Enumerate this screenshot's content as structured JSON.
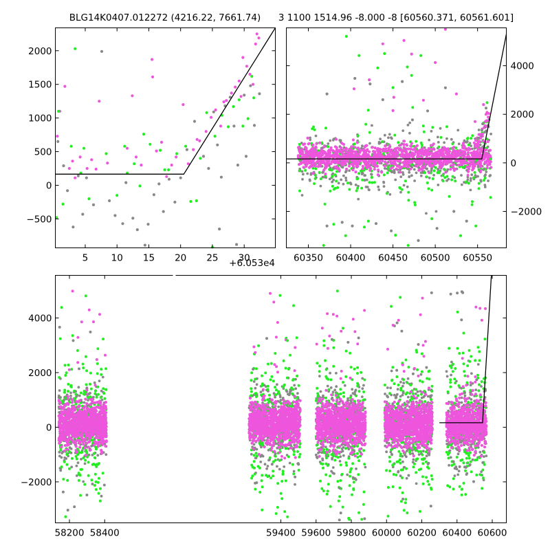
{
  "chart_data": [
    {
      "type": "scatter",
      "title": "BLG14K0407.012272 (4216.22, 7661.74)",
      "xlim": [
        0.3,
        34.9
      ],
      "ylim": [
        -930,
        2340
      ],
      "xticks": [
        5,
        10,
        15,
        20,
        25,
        30
      ],
      "xtick_labels": [
        "5",
        "10",
        "15",
        "20",
        "25",
        "30"
      ],
      "yticks": [
        -500,
        0,
        500,
        1000,
        1500,
        2000
      ],
      "ytick_labels": [
        "−500",
        "0",
        "500",
        "1000",
        "1500",
        "2000"
      ],
      "x_offset_label": "+6.053e4",
      "y_axis_side": "left",
      "model_line": {
        "x": [
          0.3,
          20.5,
          34.9
        ],
        "y": [
          165,
          165,
          2340
        ]
      },
      "series": [
        {
          "name": "magenta",
          "color": "#ee55dd",
          "points": [
            [
              0.6,
              730
            ],
            [
              1.0,
              1100
            ],
            [
              1.8,
              1470
            ],
            [
              2.5,
              250
            ],
            [
              3.0,
              360
            ],
            [
              3.4,
              110
            ],
            [
              4.2,
              420
            ],
            [
              5.3,
              250
            ],
            [
              6.0,
              380
            ],
            [
              6.7,
              240
            ],
            [
              7.2,
              1250
            ],
            [
              8.5,
              330
            ],
            [
              11.6,
              550
            ],
            [
              12.4,
              1330
            ],
            [
              13.0,
              420
            ],
            [
              13.8,
              300
            ],
            [
              15.5,
              1870
            ],
            [
              15.6,
              1610
            ],
            [
              16.2,
              510
            ],
            [
              17.0,
              640
            ],
            [
              17.8,
              130
            ],
            [
              18.6,
              300
            ],
            [
              19.3,
              420
            ],
            [
              20.4,
              1200
            ],
            [
              21.2,
              320
            ],
            [
              22.0,
              530
            ],
            [
              23.0,
              660
            ],
            [
              24.0,
              800
            ],
            [
              24.8,
              1010
            ],
            [
              25.5,
              1120
            ],
            [
              26.3,
              880
            ],
            [
              27.2,
              1260
            ],
            [
              28.0,
              1370
            ],
            [
              28.6,
              1460
            ],
            [
              29.2,
              1550
            ],
            [
              29.8,
              1900
            ],
            [
              30.4,
              1770
            ],
            [
              30.9,
              1650
            ],
            [
              31.4,
              1500
            ],
            [
              31.8,
              2100
            ],
            [
              32.0,
              2250
            ],
            [
              32.3,
              2190
            ],
            [
              22.6,
              680
            ],
            [
              26.8,
              1240
            ],
            [
              29.5,
              1320
            ]
          ]
        },
        {
          "name": "green",
          "color": "#22ee22",
          "points": [
            [
              0.5,
              -480
            ],
            [
              0.8,
              1100
            ],
            [
              1.5,
              -280
            ],
            [
              2.8,
              580
            ],
            [
              3.4,
              2030
            ],
            [
              4.3,
              180
            ],
            [
              4.8,
              550
            ],
            [
              5.6,
              -200
            ],
            [
              8.3,
              470
            ],
            [
              10.0,
              -150
            ],
            [
              11.2,
              580
            ],
            [
              11.6,
              180
            ],
            [
              12.7,
              320
            ],
            [
              13.6,
              -10
            ],
            [
              14.2,
              760
            ],
            [
              15.2,
              610
            ],
            [
              16.8,
              520
            ],
            [
              17.5,
              230
            ],
            [
              18.1,
              230
            ],
            [
              19.4,
              470
            ],
            [
              20.8,
              580
            ],
            [
              21.6,
              -240
            ],
            [
              22.5,
              -230
            ],
            [
              23.1,
              400
            ],
            [
              24.1,
              1080
            ],
            [
              25.0,
              -920
            ],
            [
              25.4,
              730
            ],
            [
              26.5,
              1040
            ],
            [
              27.5,
              870
            ],
            [
              28.3,
              1170
            ],
            [
              29.2,
              1270
            ],
            [
              29.8,
              880
            ],
            [
              30.6,
              990
            ],
            [
              31.2,
              1620
            ],
            [
              31.5,
              1300
            ]
          ]
        },
        {
          "name": "gray",
          "color": "#888888",
          "points": [
            [
              0.7,
              650
            ],
            [
              1.6,
              290
            ],
            [
              2.2,
              -80
            ],
            [
              3.1,
              -620
            ],
            [
              3.9,
              140
            ],
            [
              4.6,
              -430
            ],
            [
              5.2,
              110
            ],
            [
              6.3,
              -290
            ],
            [
              7.6,
              1990
            ],
            [
              8.8,
              -230
            ],
            [
              9.7,
              -450
            ],
            [
              10.9,
              -570
            ],
            [
              11.4,
              40
            ],
            [
              12.5,
              -490
            ],
            [
              13.2,
              -660
            ],
            [
              14.4,
              -890
            ],
            [
              14.9,
              -580
            ],
            [
              15.8,
              -140
            ],
            [
              16.6,
              20
            ],
            [
              17.3,
              -390
            ],
            [
              18.2,
              90
            ],
            [
              19.1,
              -250
            ],
            [
              20.0,
              110
            ],
            [
              21.0,
              530
            ],
            [
              22.2,
              950
            ],
            [
              23.6,
              430
            ],
            [
              24.4,
              250
            ],
            [
              25.2,
              1090
            ],
            [
              25.8,
              600
            ],
            [
              26.4,
              120
            ],
            [
              27.0,
              1180
            ],
            [
              27.8,
              1310
            ],
            [
              28.4,
              880
            ],
            [
              29.0,
              300
            ],
            [
              30.0,
              1340
            ],
            [
              31.0,
              1480
            ],
            [
              31.6,
              890
            ],
            [
              32.4,
              1360
            ],
            [
              26.1,
              -650
            ],
            [
              28.8,
              -880
            ],
            [
              30.3,
              430
            ]
          ]
        }
      ]
    },
    {
      "type": "scatter",
      "title": "3 1100 1514.96 -8.000 -8 [60560.371, 60561.601]",
      "xlim": [
        60324,
        60584
      ],
      "ylim": [
        -3500,
        5560
      ],
      "xticks": [
        60350,
        60400,
        60450,
        60500,
        60550
      ],
      "xtick_labels": [
        "60350",
        "60400",
        "60450",
        "60500",
        "60550"
      ],
      "yticks": [
        -2000,
        0,
        2000,
        4000
      ],
      "ytick_labels": [
        "−2000",
        "0",
        "2000",
        "4000"
      ],
      "y_axis_side": "right",
      "model_line": {
        "x": [
          60324,
          60555,
          60584
        ],
        "y": [
          165,
          165,
          5300
        ]
      },
      "scatter_x_range": [
        60338,
        60566
      ],
      "outliers": [
        {
          "color": "#22ee22",
          "points": [
            [
              60395,
              5210
            ],
            [
              60410,
              4420
            ],
            [
              60418,
              1590
            ],
            [
              60432,
              3910
            ],
            [
              60440,
              4500
            ],
            [
              60450,
              3100
            ],
            [
              60467,
              3950
            ],
            [
              60472,
              3600
            ],
            [
              60483,
              4420
            ],
            [
              60368,
              -3400
            ],
            [
              60380,
              -2530
            ],
            [
              60394,
              -3000
            ],
            [
              60421,
              -2400
            ],
            [
              60453,
              -2980
            ],
            [
              60468,
              -3400
            ],
            [
              60496,
              -2300
            ],
            [
              60530,
              -3000
            ],
            [
              60548,
              -2600
            ]
          ]
        },
        {
          "color": "#ee55dd",
          "points": [
            [
              60404,
              3050
            ],
            [
              60422,
              3420
            ],
            [
              60438,
              4900
            ],
            [
              60451,
              2700
            ],
            [
              60463,
              5040
            ],
            [
              60472,
              4480
            ],
            [
              60486,
              2580
            ],
            [
              60500,
              4130
            ],
            [
              60512,
              5500
            ],
            [
              60525,
              2840
            ],
            [
              60547,
              1700
            ],
            [
              60557,
              2400
            ],
            [
              60560,
              2000
            ],
            [
              60450,
              2150
            ]
          ]
        },
        {
          "color": "#888888",
          "points": [
            [
              60372,
              2840
            ],
            [
              60405,
              3480
            ],
            [
              60423,
              3250
            ],
            [
              60438,
              2600
            ],
            [
              60461,
              3350
            ],
            [
              60473,
              1770
            ],
            [
              60491,
              2140
            ],
            [
              60512,
              3090
            ],
            [
              60372,
              -2600
            ],
            [
              60390,
              -2450
            ],
            [
              60402,
              -2600
            ],
            [
              60430,
              -2500
            ],
            [
              60448,
              -2800
            ],
            [
              60480,
              -3200
            ],
            [
              60502,
              -2700
            ],
            [
              60522,
              -2000
            ],
            [
              60537,
              -2400
            ]
          ]
        }
      ]
    },
    {
      "type": "scatter",
      "title": "",
      "xlim": [
        58120,
        60680
      ],
      "ylim": [
        -3500,
        5560
      ],
      "xticks": [
        58200,
        58400,
        59400,
        59600,
        59800,
        60000,
        60200,
        60400,
        60600
      ],
      "xtick_labels": [
        "58200",
        "58400",
        "59400",
        "59600",
        "59800",
        "60000",
        "60200",
        "60400",
        "60600"
      ],
      "yticks": [
        -2000,
        0,
        2000,
        4000
      ],
      "ytick_labels": [
        "−2000",
        "0",
        "2000",
        "4000"
      ],
      "y_axis_side": "left",
      "broken_axis_gap": [
        58450,
        59140
      ],
      "model_line": {
        "x": [
          60300,
          60545,
          60595
        ],
        "y": [
          165,
          165,
          5560
        ]
      },
      "seasons": [
        {
          "x_range": [
            58140,
            58410
          ],
          "count": 900
        },
        {
          "x_range": [
            59220,
            59510
          ],
          "count": 900
        },
        {
          "x_range": [
            59600,
            59880
          ],
          "count": 900
        },
        {
          "x_range": [
            59990,
            60260
          ],
          "count": 900
        },
        {
          "x_range": [
            60340,
            60566
          ],
          "count": 700
        }
      ]
    }
  ]
}
